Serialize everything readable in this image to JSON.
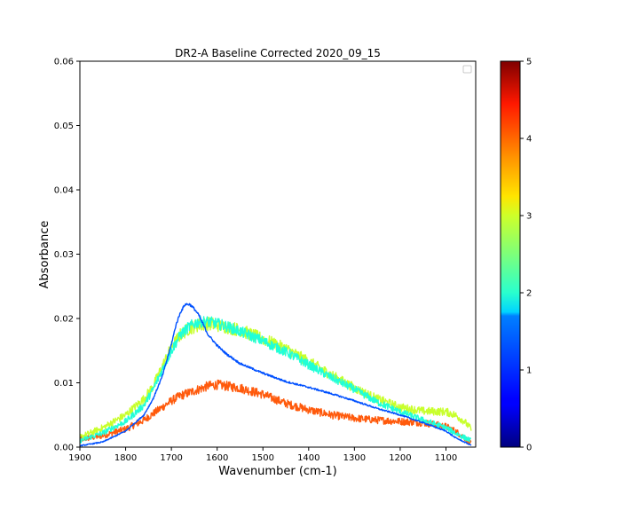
{
  "chart_data": {
    "type": "line",
    "title": "DR2-A Baseline Corrected 2020_09_15",
    "xlabel": "Wavenumber (cm-1)",
    "ylabel": "Absorbance",
    "xlim": [
      1900,
      1035
    ],
    "ylim": [
      0,
      0.06
    ],
    "x_reversed": true,
    "x_ticks": [
      1900,
      1800,
      1700,
      1600,
      1500,
      1400,
      1300,
      1200,
      1100
    ],
    "y_ticks": [
      0.0,
      0.01,
      0.02,
      0.03,
      0.04,
      0.05,
      0.06
    ],
    "y_tick_labels": [
      "0.00",
      "0.01",
      "0.02",
      "0.03",
      "0.04",
      "0.05",
      "0.06"
    ],
    "grid": false,
    "legend": {
      "placement": "top-right",
      "entries": []
    },
    "colorbar": {
      "colormap": "jet",
      "range": [
        0,
        5
      ],
      "ticks": [
        0,
        1,
        2,
        3,
        4,
        5
      ]
    },
    "series": [
      {
        "color_value": 1,
        "color": "#0050ff",
        "noise": 0.0002,
        "x": [
          1900,
          1850,
          1800,
          1760,
          1740,
          1720,
          1700,
          1690,
          1680,
          1670,
          1660,
          1650,
          1640,
          1630,
          1620,
          1600,
          1580,
          1550,
          1500,
          1450,
          1400,
          1350,
          1300,
          1250,
          1200,
          1150,
          1100,
          1080,
          1060,
          1045
        ],
        "y": [
          0.0002,
          0.0008,
          0.0025,
          0.005,
          0.0075,
          0.011,
          0.016,
          0.019,
          0.021,
          0.0222,
          0.0222,
          0.0215,
          0.0205,
          0.019,
          0.0175,
          0.0158,
          0.0145,
          0.013,
          0.0115,
          0.0102,
          0.0093,
          0.0083,
          0.0072,
          0.006,
          0.005,
          0.0038,
          0.0025,
          0.0015,
          0.0008,
          0.0003
        ]
      },
      {
        "color_value": 2,
        "color": "#20ffd8",
        "noise": 0.0009,
        "x": [
          1900,
          1850,
          1800,
          1760,
          1740,
          1720,
          1700,
          1680,
          1660,
          1640,
          1620,
          1600,
          1580,
          1550,
          1500,
          1450,
          1400,
          1350,
          1300,
          1250,
          1200,
          1150,
          1100,
          1080,
          1060,
          1045
        ],
        "y": [
          0.001,
          0.0022,
          0.004,
          0.0065,
          0.009,
          0.012,
          0.015,
          0.0175,
          0.0188,
          0.0195,
          0.0195,
          0.0192,
          0.0188,
          0.018,
          0.0165,
          0.0148,
          0.0128,
          0.0108,
          0.009,
          0.007,
          0.0055,
          0.0042,
          0.003,
          0.0022,
          0.0015,
          0.001
        ]
      },
      {
        "color_value": 3,
        "color": "#c8ff2c",
        "noise": 0.0011,
        "x": [
          1900,
          1850,
          1800,
          1760,
          1740,
          1720,
          1700,
          1680,
          1660,
          1640,
          1620,
          1600,
          1580,
          1550,
          1500,
          1450,
          1400,
          1350,
          1300,
          1250,
          1200,
          1150,
          1100,
          1080,
          1060,
          1045
        ],
        "y": [
          0.0015,
          0.003,
          0.005,
          0.0075,
          0.0095,
          0.0125,
          0.0155,
          0.0175,
          0.0185,
          0.019,
          0.0192,
          0.019,
          0.0187,
          0.0182,
          0.0168,
          0.0153,
          0.0133,
          0.0112,
          0.0092,
          0.0075,
          0.0062,
          0.0056,
          0.0055,
          0.005,
          0.004,
          0.0028
        ]
      },
      {
        "color_value": 4,
        "color": "#ff5a0c",
        "noise": 0.0011,
        "x": [
          1900,
          1850,
          1800,
          1760,
          1740,
          1720,
          1700,
          1680,
          1660,
          1640,
          1620,
          1600,
          1580,
          1550,
          1500,
          1450,
          1400,
          1350,
          1300,
          1250,
          1200,
          1150,
          1100,
          1080,
          1060,
          1045
        ],
        "y": [
          0.0012,
          0.0018,
          0.0028,
          0.0042,
          0.0052,
          0.0062,
          0.0072,
          0.008,
          0.0085,
          0.009,
          0.0095,
          0.0097,
          0.0095,
          0.0092,
          0.0082,
          0.0068,
          0.0058,
          0.005,
          0.0045,
          0.0042,
          0.004,
          0.0038,
          0.0032,
          0.0025,
          0.0015,
          0.0005
        ]
      }
    ]
  }
}
